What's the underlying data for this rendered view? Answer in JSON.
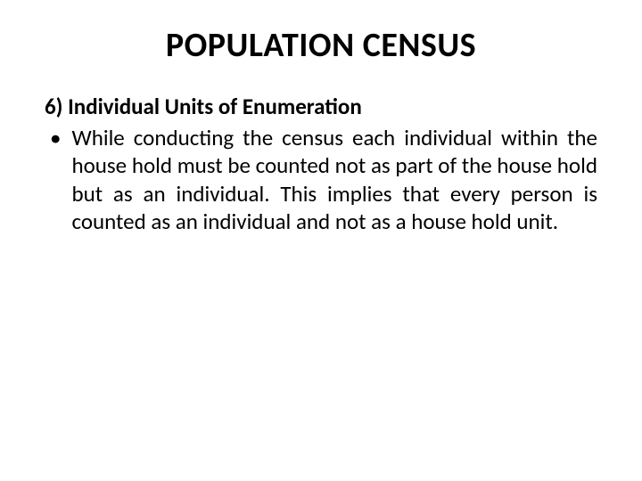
{
  "slide": {
    "title": "POPULATION CENSUS",
    "subheading": "6) Individual Units of Enumeration",
    "bullet_char": "•",
    "body_text": "While conducting the census each individual within the house hold must be counted not as part of the house hold but as an individual. This implies that every person is counted as an individual  and not as a house hold unit."
  },
  "style": {
    "background_color": "#ffffff",
    "text_color": "#000000",
    "title_fontsize": 38,
    "subheading_fontsize": 25,
    "body_fontsize": 25,
    "font_family": "Calibri, Arial, sans-serif"
  }
}
